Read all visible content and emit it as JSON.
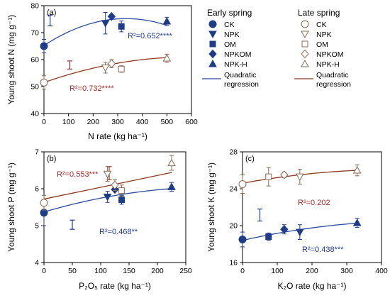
{
  "legend": {
    "early_header": "Early spring",
    "late_header": "Late spring",
    "early_items": [
      "CK",
      "NPK",
      "OM",
      "NPKOM",
      "NPK-H"
    ],
    "late_items": [
      "CK",
      "NPK",
      "OM",
      "NPKOM",
      "NPK-H"
    ],
    "regression_line1": "Quadratic",
    "regression_line2": "regression"
  },
  "colors": {
    "early": "#1f3c88",
    "late": "#a0302a",
    "early_curve": "#2b4aa0",
    "late_curve": "#8b3a1f",
    "late_marker": "#8a6a55"
  },
  "chart_data": [
    {
      "id": "a",
      "type": "scatter",
      "panel_label": "(a)",
      "xlabel": "N rate (kg ha⁻¹)",
      "ylabel": "Young shoot N (mg g⁻¹)",
      "xlim": [
        0,
        600
      ],
      "ylim": [
        40,
        80
      ],
      "xticks": [
        0,
        100,
        200,
        300,
        400,
        500,
        600
      ],
      "yticks": [
        40,
        50,
        60,
        70,
        80
      ],
      "lsd_bars": [
        {
          "x": 25,
          "y_low": 72.5,
          "y_high": 76.5
        },
        {
          "x": 105,
          "y_low": 56.5,
          "y_high": 59.5
        }
      ],
      "series": [
        {
          "group": "early",
          "points": [
            {
              "treatment": "CK",
              "x": 0,
              "y": 65,
              "err": 2.5
            },
            {
              "treatment": "NPK",
              "x": 250,
              "y": 73.5,
              "err": 4
            },
            {
              "treatment": "NPKOM",
              "x": 275,
              "y": 76,
              "err": 0
            },
            {
              "treatment": "OM",
              "x": 315,
              "y": 72.3,
              "err": 2
            },
            {
              "treatment": "NPK-H",
              "x": 500,
              "y": 74.2,
              "err": 1.5
            }
          ],
          "fit": {
            "a": 65.2,
            "b": 0.06,
            "c": -9e-05,
            "x_range": [
              0,
              500
            ]
          },
          "r2_text": "R²=0.652****"
        },
        {
          "group": "late",
          "points": [
            {
              "treatment": "CK",
              "x": 0,
              "y": 51.5,
              "err": 2.5
            },
            {
              "treatment": "NPK",
              "x": 250,
              "y": 57,
              "err": 2
            },
            {
              "treatment": "NPKOM",
              "x": 275,
              "y": 58.5,
              "err": 1.5
            },
            {
              "treatment": "OM",
              "x": 315,
              "y": 56.5,
              "err": 1.2
            },
            {
              "treatment": "NPK-H",
              "x": 500,
              "y": 60.5,
              "err": 1.5
            }
          ],
          "fit": {
            "a": 51.5,
            "b": 0.032,
            "c": -2.7e-05,
            "x_range": [
              0,
              500
            ]
          },
          "r2_text": "R²=0.732****"
        }
      ]
    },
    {
      "id": "b",
      "type": "scatter",
      "panel_label": "(b)",
      "xlabel": "P₂O₅ rate (kg ha⁻¹)",
      "ylabel": "Young shoot P (mg g⁻¹)",
      "xlim": [
        0,
        250
      ],
      "ylim": [
        4,
        7
      ],
      "xticks": [
        0,
        50,
        100,
        150,
        200,
        250
      ],
      "yticks": [
        4,
        5,
        6,
        7
      ],
      "lsd_bars": [
        {
          "x": 50,
          "y_low": 4.9,
          "y_high": 5.15
        },
        {
          "x": 115,
          "y_low": 6.25,
          "y_high": 6.6
        }
      ],
      "series": [
        {
          "group": "early",
          "points": [
            {
              "treatment": "CK",
              "x": 0,
              "y": 5.35,
              "err": 0.35
            },
            {
              "treatment": "NPK",
              "x": 112,
              "y": 5.78,
              "err": 0.15
            },
            {
              "treatment": "NPKOM",
              "x": 125,
              "y": 5.98,
              "err": 0
            },
            {
              "treatment": "OM",
              "x": 137,
              "y": 5.7,
              "err": 0.12
            },
            {
              "treatment": "NPK-H",
              "x": 225,
              "y": 6.05,
              "err": 0.12
            }
          ],
          "fit": {
            "a": 5.37,
            "b": 0.0045,
            "c": -7.5e-06,
            "x_range": [
              0,
              225
            ]
          },
          "r2_text": "R²=0.468**"
        },
        {
          "group": "late",
          "points": [
            {
              "treatment": "CK",
              "x": 0,
              "y": 5.62,
              "err": 0.2
            },
            {
              "treatment": "NPK",
              "x": 112,
              "y": 6.4,
              "err": 0.2
            },
            {
              "treatment": "NPKOM",
              "x": 125,
              "y": 6.1,
              "err": 0.15
            },
            {
              "treatment": "OM",
              "x": 137,
              "y": 5.95,
              "err": 0.15
            },
            {
              "treatment": "NPK-H",
              "x": 225,
              "y": 6.7,
              "err": 0.2
            }
          ],
          "fit": {
            "a": 5.72,
            "b": 0.0032,
            "c": 0.0,
            "x_range": [
              0,
              225
            ]
          },
          "r2_text": "R²=0.553***"
        }
      ]
    },
    {
      "id": "c",
      "type": "scatter",
      "panel_label": "(c)",
      "xlabel": "K₂O rate (kg ha⁻¹)",
      "ylabel": "Young shoot K (mg g⁻¹)",
      "xlim": [
        0,
        400
      ],
      "ylim": [
        16,
        28
      ],
      "xticks": [
        0,
        100,
        200,
        300,
        400
      ],
      "yticks": [
        16,
        20,
        24,
        28
      ],
      "lsd_bars": [
        {
          "x": 50,
          "y_low": 20.5,
          "y_high": 21.8
        }
      ],
      "series": [
        {
          "group": "early",
          "points": [
            {
              "treatment": "CK",
              "x": 0,
              "y": 18.5,
              "err": 0.8
            },
            {
              "treatment": "OM",
              "x": 75,
              "y": 18.8,
              "err": 0.4
            },
            {
              "treatment": "NPKOM",
              "x": 120,
              "y": 19.6,
              "err": 0.5
            },
            {
              "treatment": "NPK",
              "x": 165,
              "y": 19.3,
              "err": 0.8
            },
            {
              "treatment": "NPK-H",
              "x": 330,
              "y": 20.3,
              "err": 0.5
            }
          ],
          "fit": {
            "a": 18.4,
            "b": 0.0085,
            "c": -8.6e-06,
            "x_range": [
              0,
              330
            ]
          },
          "r2_text": "R²=0.438***"
        },
        {
          "group": "late",
          "points": [
            {
              "treatment": "CK",
              "x": 0,
              "y": 24.5,
              "err": 1.0
            },
            {
              "treatment": "OM",
              "x": 75,
              "y": 25.3,
              "err": 1.0
            },
            {
              "treatment": "NPKOM",
              "x": 120,
              "y": 25.5,
              "err": 0.3
            },
            {
              "treatment": "NPK",
              "x": 165,
              "y": 25.3,
              "err": 0.8
            },
            {
              "treatment": "NPK-H",
              "x": 330,
              "y": 26.0,
              "err": 0.6
            }
          ],
          "fit": {
            "a": 24.6,
            "b": 0.0068,
            "c": -7.8e-06,
            "x_range": [
              0,
              330
            ]
          },
          "r2_text": "R²=0.202"
        }
      ]
    }
  ]
}
